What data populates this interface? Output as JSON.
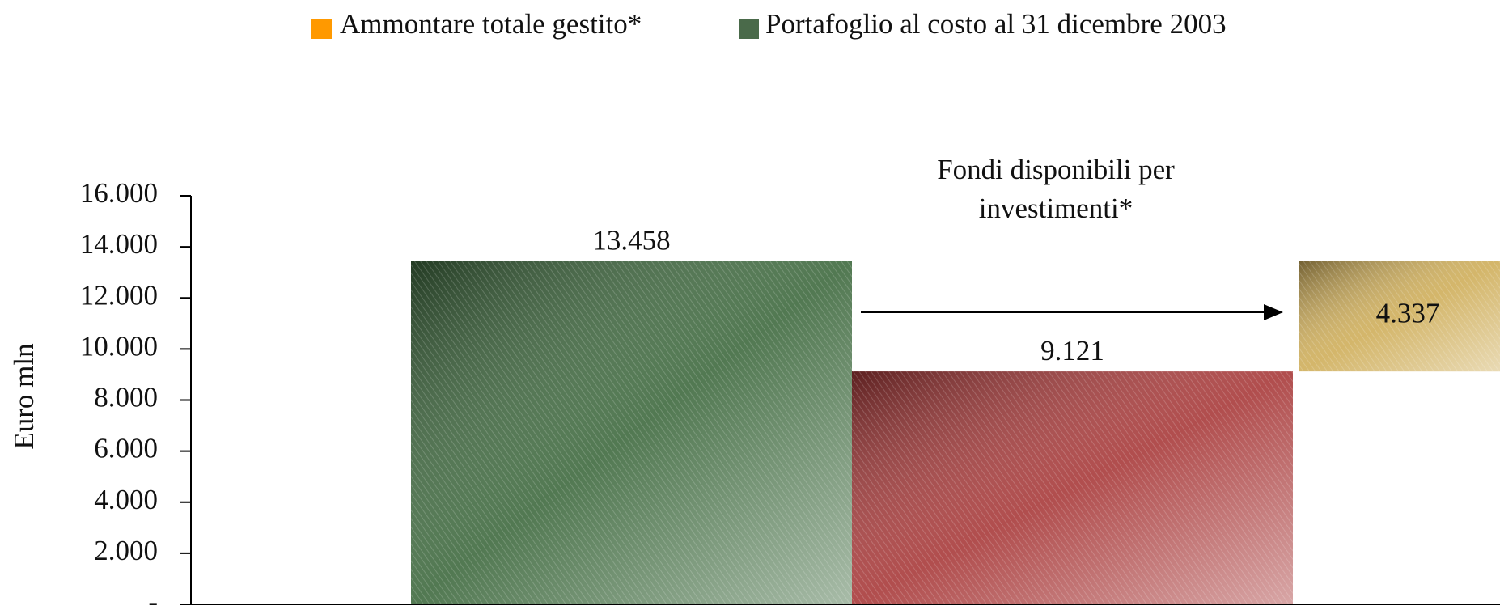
{
  "chart_data": {
    "type": "waterfall",
    "y_axis_label": "Euro mln",
    "annotation": "Fondi disponibili per investimenti*",
    "legend": [
      {
        "name": "Ammontare totale gestito*",
        "color": "#ff9900"
      },
      {
        "name": "Portafoglio al costo al 31 dicembre 2003",
        "color": "#4a6a4a"
      }
    ],
    "categories": [
      null,
      null,
      null
    ],
    "values": [
      13458,
      9121,
      4337
    ],
    "value_labels": [
      "13.458",
      "9.121",
      "4.337"
    ],
    "colors": [
      "#3f6a3f",
      "#a83a3a",
      "#cfae5a"
    ],
    "ylim": [
      0,
      16000
    ],
    "yticks": [
      {
        "value": 0,
        "label": "-"
      },
      {
        "value": 2000,
        "label": "2.000"
      },
      {
        "value": 4000,
        "label": "4.000"
      },
      {
        "value": 6000,
        "label": "6.000"
      },
      {
        "value": 8000,
        "label": "8.000"
      },
      {
        "value": 10000,
        "label": "10.000"
      },
      {
        "value": 12000,
        "label": "12.000"
      },
      {
        "value": 14000,
        "label": "14.000"
      },
      {
        "value": 16000,
        "label": "16.000"
      }
    ]
  }
}
